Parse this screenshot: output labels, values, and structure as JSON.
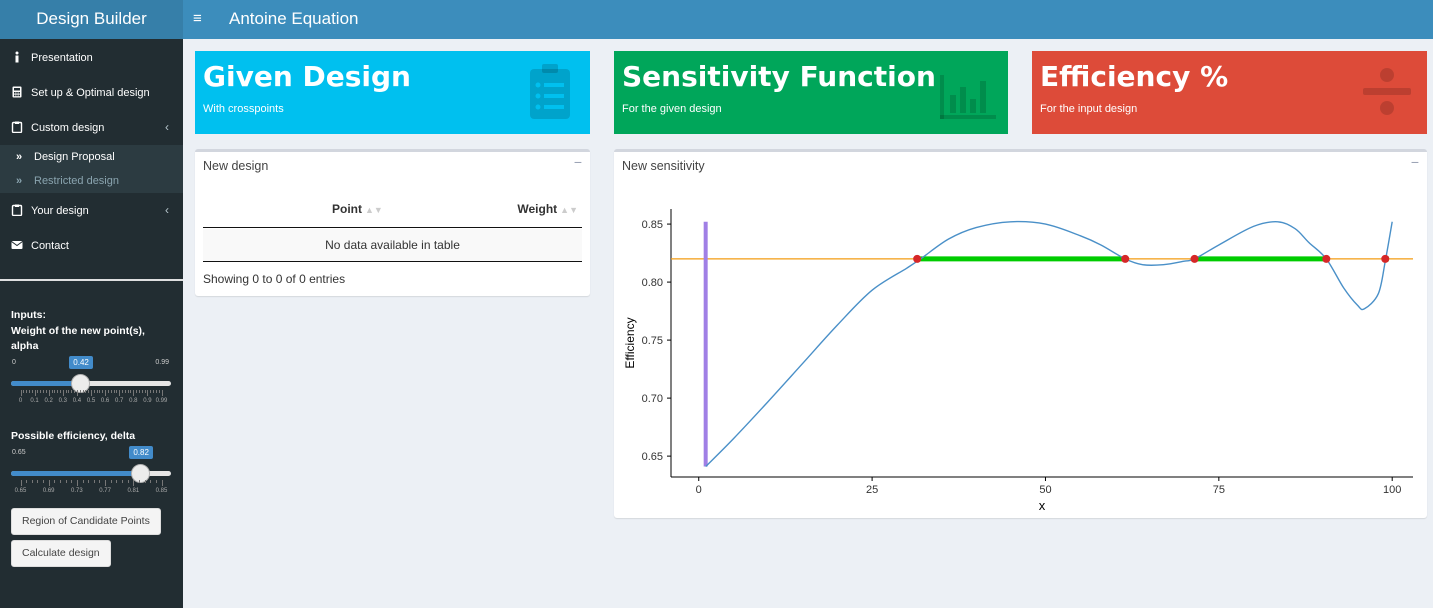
{
  "header": {
    "logo": "Design Builder",
    "toggle": "≡",
    "title": "Antoine Equation"
  },
  "sidebar": {
    "items": [
      {
        "label": "Presentation",
        "icon": "info-icon"
      },
      {
        "label": "Set up & Optimal design",
        "icon": "calculator-icon"
      },
      {
        "label": "Custom design",
        "icon": "clipboard-icon",
        "chevron": "‹"
      },
      {
        "label": "Your design",
        "icon": "clipboard-icon",
        "chevron": "‹"
      },
      {
        "label": "Contact",
        "icon": "envelope-icon"
      }
    ],
    "sub_items": [
      {
        "label": "Design Proposal",
        "icon": "double-chevron-right-icon"
      },
      {
        "label": "Restricted design",
        "icon": "double-chevron-right-icon"
      }
    ]
  },
  "inputs": {
    "header": "Inputs:",
    "alpha_label_line1": "Weight of the new point(s),",
    "alpha_label_line2": "alpha",
    "alpha": {
      "min": "0",
      "max": "0.99",
      "value": "0.42",
      "fraction": 0.424,
      "ticks": [
        "0",
        "0.1",
        "0.2",
        "0.3",
        "0.4",
        "0.5",
        "0.6",
        "0.7",
        "0.8",
        "0.9",
        "0.99"
      ]
    },
    "delta_label": "Possible efficiency, delta",
    "delta": {
      "min": "0.65",
      "max": "0.85",
      "value": "0.82",
      "fraction": 0.85,
      "ticks": [
        "0.65",
        "0.69",
        "0.73",
        "0.77",
        "0.81",
        "0.85"
      ]
    },
    "btn_region": "Region of Candidate Points",
    "btn_calc": "Calculate design"
  },
  "valueboxes": [
    {
      "title": "Given Design",
      "subtitle": "With crosspoints",
      "color": "#00c0ef",
      "icon": "clipboard-list-icon"
    },
    {
      "title": "Sensitivity Function",
      "subtitle": "For the given design",
      "color": "#00a65a",
      "icon": "bar-chart-icon"
    },
    {
      "title": "Efficiency %",
      "subtitle": "For the input design",
      "color": "#dd4b39",
      "icon": "divide-icon"
    }
  ],
  "new_design": {
    "title": "New design",
    "collapse": "−",
    "columns": [
      "Point",
      "Weight"
    ],
    "empty": "No data available in table",
    "info": "Showing 0 to 0 of 0 entries"
  },
  "new_sensitivity": {
    "title": "New sensitivity",
    "collapse": "−"
  },
  "chart_data": {
    "type": "line",
    "xlabel": "x",
    "ylabel": "Efficiency",
    "xlim": [
      -4,
      103
    ],
    "ylim": [
      0.632,
      0.863
    ],
    "xticks": [
      0,
      25,
      50,
      75,
      100
    ],
    "xtick_labels": [
      "0",
      "25",
      "50",
      "75",
      "100"
    ],
    "yticks": [
      0.65,
      0.7,
      0.75,
      0.8,
      0.85
    ],
    "ytick_labels": [
      "0.65",
      "0.70",
      "0.75",
      "0.80",
      "0.85"
    ],
    "grid": false,
    "threshold": {
      "y": 0.82,
      "color": "#f39c12"
    },
    "vertical_segment": {
      "x": 1,
      "y0": 0.641,
      "y1": 0.852,
      "color": "#a07fe5"
    },
    "curve": {
      "color": "#4a90c8",
      "x": [
        1,
        5,
        10,
        15,
        20,
        25,
        30,
        32,
        36,
        40,
        45,
        50,
        55,
        58,
        61.5,
        64,
        67,
        70,
        71.5,
        75,
        80,
        83.5,
        86,
        88,
        90.5,
        93,
        95,
        96,
        98,
        99,
        100
      ],
      "y": [
        0.641,
        0.665,
        0.697,
        0.73,
        0.763,
        0.793,
        0.812,
        0.82,
        0.837,
        0.847,
        0.852,
        0.85,
        0.84,
        0.832,
        0.82,
        0.815,
        0.815,
        0.818,
        0.82,
        0.832,
        0.848,
        0.852,
        0.846,
        0.834,
        0.82,
        0.795,
        0.78,
        0.777,
        0.79,
        0.818,
        0.852
      ]
    },
    "regions": [
      {
        "x0": 31.5,
        "x1": 61.5,
        "color": "#00cc00"
      },
      {
        "x0": 71.5,
        "x1": 90.5,
        "color": "#00cc00"
      },
      {
        "x0": 99,
        "x1": 99.5,
        "color": "#00cc00"
      }
    ],
    "crosspoints": {
      "color": "#d62728",
      "x": [
        31.5,
        61.5,
        71.5,
        90.5,
        99
      ],
      "y": [
        0.82,
        0.82,
        0.82,
        0.82,
        0.82
      ]
    }
  }
}
